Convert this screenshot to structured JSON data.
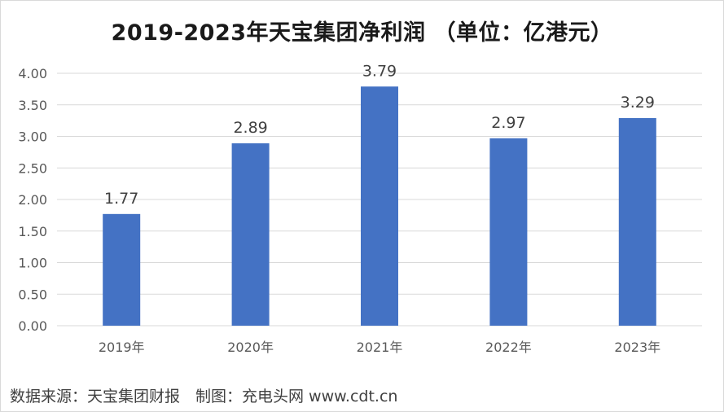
{
  "chart_data": {
    "type": "bar",
    "title": "2019-2023年天宝集团净利润 （单位：亿港元）",
    "categories": [
      "2019年",
      "2020年",
      "2021年",
      "2022年",
      "2023年"
    ],
    "values": [
      1.77,
      2.89,
      3.79,
      2.97,
      3.29
    ],
    "data_labels": [
      "1.77",
      "2.89",
      "3.79",
      "2.97",
      "3.29"
    ],
    "y_ticks": [
      "0.00",
      "0.50",
      "1.00",
      "1.50",
      "2.00",
      "2.50",
      "3.00",
      "3.50",
      "4.00"
    ],
    "ylim": [
      0,
      4
    ],
    "grid": true,
    "bar_color": "#4472c4",
    "grid_color": "#d9d9d9"
  },
  "footer": {
    "source": "数据来源：天宝集团财报　制图：充电头网 www.cdt.cn"
  }
}
